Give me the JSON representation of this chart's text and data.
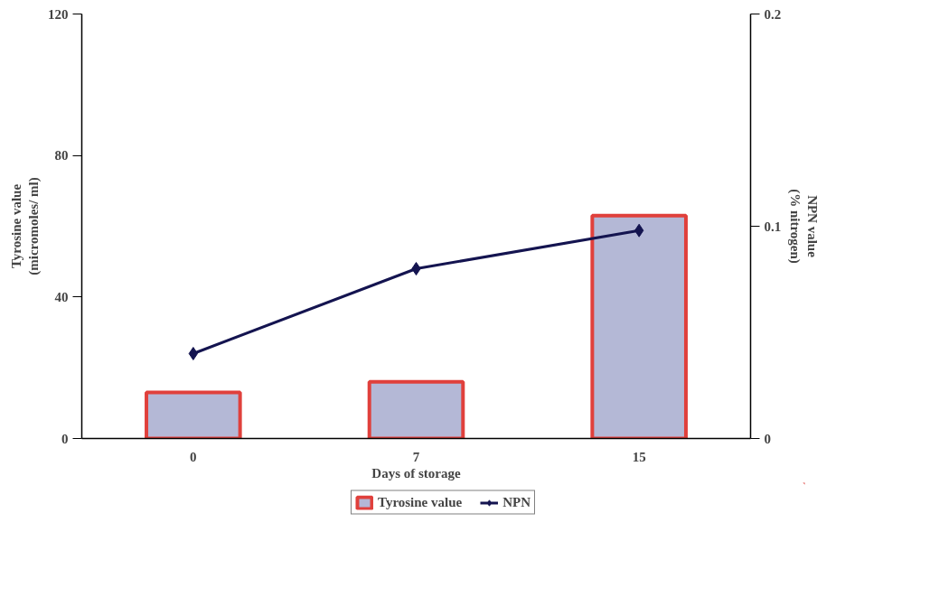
{
  "chart_data": {
    "type": "bar",
    "xlabel": "Days of storage",
    "ylabel": "Tyrosine value\n(micromoles/ ml)",
    "y2label": "NPN value\n(% nitrogen)",
    "categories": [
      "0",
      "7",
      "15"
    ],
    "series": [
      {
        "name": "Tyrosine value",
        "color": "#b4b8d6",
        "values": [
          13,
          16,
          63
        ]
      },
      {
        "name": "NPN",
        "type": "line",
        "axis": "y2",
        "color": "#141450",
        "marker": "diamond",
        "values": [
          0.04,
          0.08,
          0.098
        ]
      }
    ],
    "ylim": [
      0,
      120
    ],
    "yticks": [
      0,
      40,
      80,
      120
    ],
    "y2lim": [
      0,
      0.2
    ],
    "y2ticks": [
      0,
      0.1,
      0.2
    ],
    "grid": false,
    "legend": "bottom"
  }
}
